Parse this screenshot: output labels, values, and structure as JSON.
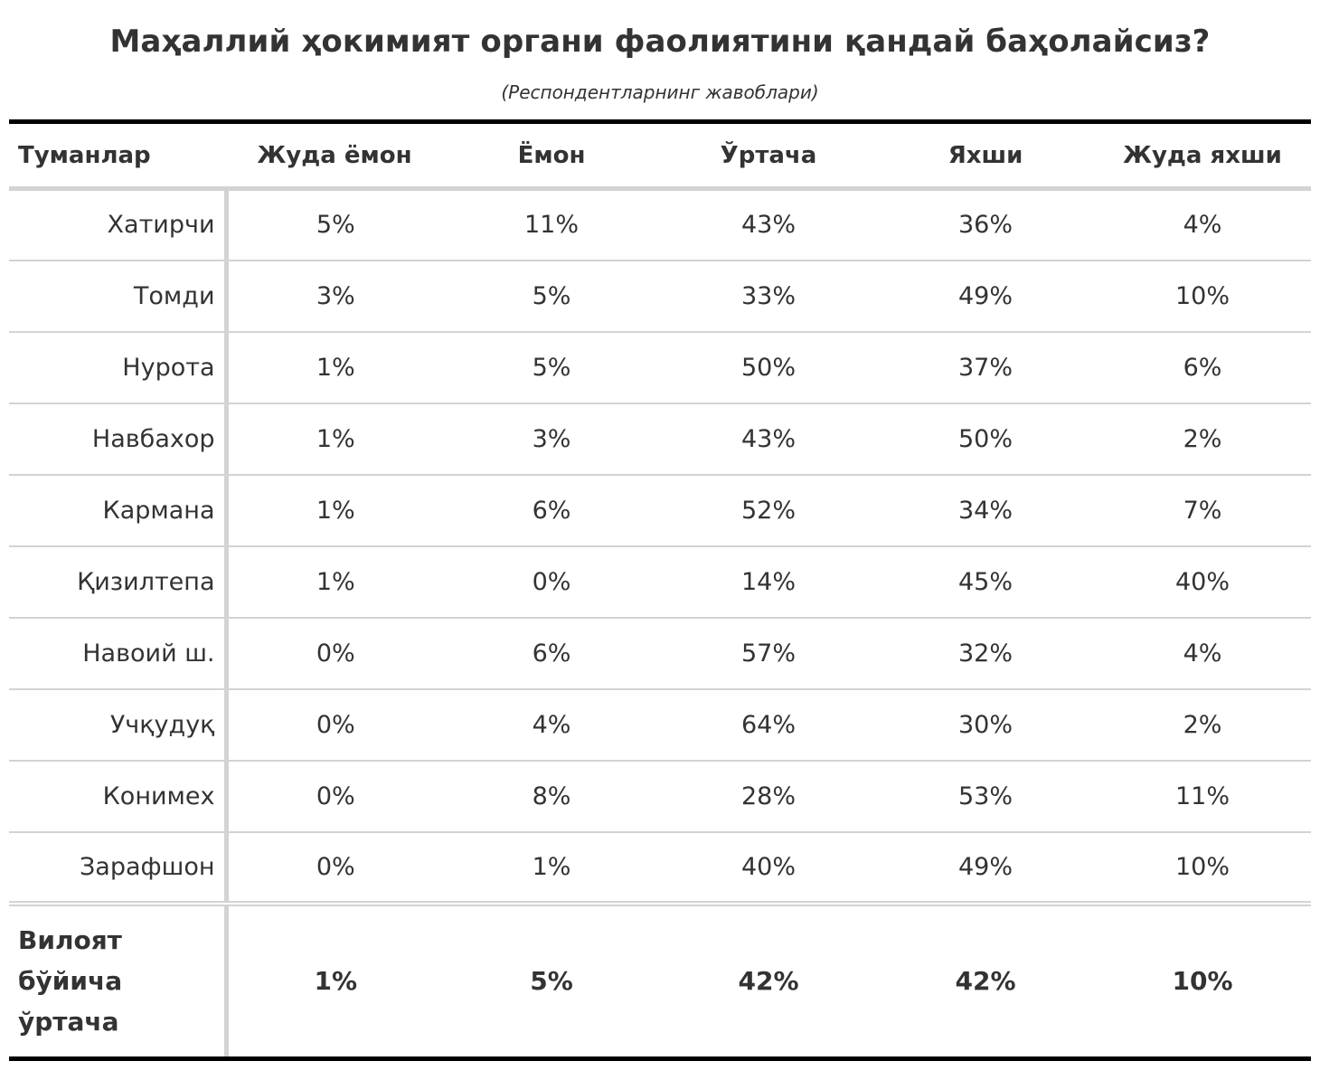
{
  "title": "Маҳаллий ҳокимият органи фаолиятини қандай баҳолайсиз?",
  "subtitle": "(Респондентларнинг жавоблари)",
  "table": {
    "columns": [
      "Туманлар",
      "Жуда ёмон",
      "Ёмон",
      "Ўртача",
      "Яхши",
      "Жуда яхши"
    ],
    "rows": [
      {
        "district": "Хатирчи",
        "values": [
          "5%",
          "11%",
          "43%",
          "36%",
          "4%"
        ]
      },
      {
        "district": "Томди",
        "values": [
          "3%",
          "5%",
          "33%",
          "49%",
          "10%"
        ]
      },
      {
        "district": "Нурота",
        "values": [
          "1%",
          "5%",
          "50%",
          "37%",
          "6%"
        ]
      },
      {
        "district": "Навбахор",
        "values": [
          "1%",
          "3%",
          "43%",
          "50%",
          "2%"
        ]
      },
      {
        "district": "Кармана",
        "values": [
          "1%",
          "6%",
          "52%",
          "34%",
          "7%"
        ]
      },
      {
        "district": "Қизилтепа",
        "values": [
          "1%",
          "0%",
          "14%",
          "45%",
          "40%"
        ]
      },
      {
        "district": "Навоий ш.",
        "values": [
          "0%",
          "6%",
          "57%",
          "32%",
          "4%"
        ]
      },
      {
        "district": "Учқудуқ",
        "values": [
          "0%",
          "4%",
          "64%",
          "30%",
          "2%"
        ]
      },
      {
        "district": "Конимех",
        "values": [
          "0%",
          "8%",
          "28%",
          "53%",
          "11%"
        ]
      },
      {
        "district": "Зарафшон",
        "values": [
          "0%",
          "1%",
          "40%",
          "49%",
          "10%"
        ]
      }
    ],
    "summary": {
      "label": "Вилоят\nбўйича\nўртача",
      "values": [
        "1%",
        "5%",
        "42%",
        "42%",
        "10%"
      ]
    }
  }
}
